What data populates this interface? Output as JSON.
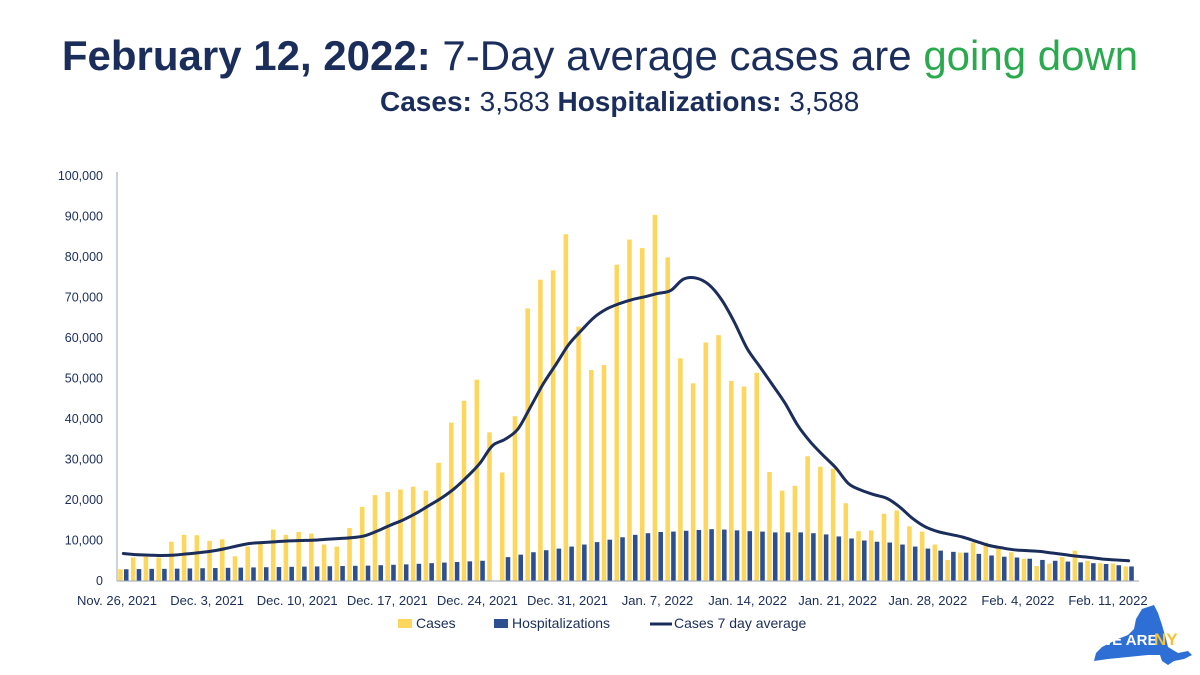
{
  "header": {
    "title_bold": "February 12, 2022:",
    "title_plain": "7-Day average cases are",
    "title_green": "going down",
    "cases_label": "Cases:",
    "cases_value": "3,583",
    "hosp_label": "Hospitalizations:",
    "hosp_value": "3,588"
  },
  "logo": {
    "text_we_are": "WE ARE",
    "text_ny": "NY"
  },
  "colors": {
    "cases": "#fdd65d",
    "hospitalizations": "#2d4f8f",
    "average": "#1b2d5b",
    "title": "#1b2d5b",
    "accent_green": "#2aa94f"
  },
  "chart_data": {
    "type": "bar",
    "ylim": [
      0,
      100000
    ],
    "yticks": [
      "0",
      "10,000",
      "20,000",
      "30,000",
      "40,000",
      "50,000",
      "60,000",
      "70,000",
      "80,000",
      "90,000",
      "100,000"
    ],
    "x_tick_labels": [
      "Nov. 26, 2021",
      "Dec. 3, 2021",
      "Dec. 10, 2021",
      "Dec. 17, 2021",
      "Dec. 24, 2021",
      "Dec. 31, 2021",
      "Jan. 7, 2022",
      "Jan. 14, 2022",
      "Jan. 21, 2022",
      "Jan. 28, 2022",
      "Feb. 4, 2022",
      "Feb. 11, 2022"
    ],
    "legend": [
      "Cases",
      "Hospitalizations",
      "Cases 7 day average"
    ],
    "legend_position": "bottom",
    "series": [
      {
        "name": "Cases",
        "values": [
          2900,
          5800,
          6000,
          5800,
          9700,
          11400,
          11300,
          9900,
          10300,
          6100,
          8500,
          9200,
          12700,
          11400,
          12100,
          11700,
          9000,
          8500,
          13100,
          18300,
          21200,
          22000,
          22600,
          23300,
          22300,
          29200,
          39100,
          44500,
          49700,
          36700,
          26800,
          40700,
          67300,
          74400,
          76700,
          85600,
          62800,
          52100,
          53300,
          78100,
          84300,
          82200,
          90400,
          79900,
          55000,
          48800,
          58900,
          60700,
          49400,
          48000,
          51400,
          26900,
          22300,
          23500,
          30800,
          28200,
          27700,
          19200,
          12300,
          12500,
          16600,
          17400,
          13500,
          12200,
          9000,
          5200,
          7000,
          9500,
          9500,
          8000,
          7100,
          5500,
          3700,
          4300,
          5900,
          7500,
          5000,
          4400,
          4300,
          3600
        ]
      },
      {
        "name": "Hospitalizations",
        "values": [
          2900,
          2950,
          3000,
          3000,
          3050,
          3100,
          3150,
          3200,
          3250,
          3300,
          3350,
          3400,
          3450,
          3500,
          3550,
          3600,
          3650,
          3700,
          3750,
          3800,
          3900,
          4000,
          4100,
          4250,
          4400,
          4550,
          4700,
          4850,
          5000,
          0,
          5900,
          6500,
          7100,
          7600,
          8000,
          8500,
          9000,
          9600,
          10200,
          10800,
          11400,
          11800,
          12100,
          12200,
          12400,
          12600,
          12800,
          12700,
          12500,
          12300,
          12200,
          12000,
          12000,
          12000,
          11800,
          11500,
          11000,
          10500,
          10000,
          9700,
          9500,
          9000,
          8500,
          8000,
          7500,
          7200,
          7000,
          6700,
          6300,
          6000,
          5800,
          5500,
          5200,
          5000,
          4800,
          4600,
          4400,
          4200,
          3900,
          3588
        ]
      },
      {
        "name": "Cases 7 day average",
        "values": [
          6800,
          6500,
          6400,
          6300,
          6400,
          6700,
          7000,
          7400,
          8000,
          8700,
          9300,
          9500,
          9700,
          9900,
          10000,
          10100,
          10300,
          10500,
          10700,
          11200,
          12400,
          13800,
          15100,
          16700,
          18600,
          20500,
          22800,
          25700,
          29000,
          33400,
          35000,
          37500,
          43000,
          48700,
          53500,
          58400,
          61900,
          65100,
          67200,
          68500,
          69500,
          70200,
          71000,
          71700,
          74500,
          74800,
          73200,
          69500,
          64000,
          57500,
          53000,
          48500,
          43900,
          38400,
          34300,
          31000,
          27900,
          24000,
          22400,
          21300,
          20400,
          18300,
          15500,
          13400,
          12200,
          11500,
          10800,
          9800,
          8800,
          8200,
          7700,
          7500,
          7300,
          6900,
          6500,
          6100,
          5800,
          5400,
          5200,
          5000
        ]
      }
    ]
  }
}
